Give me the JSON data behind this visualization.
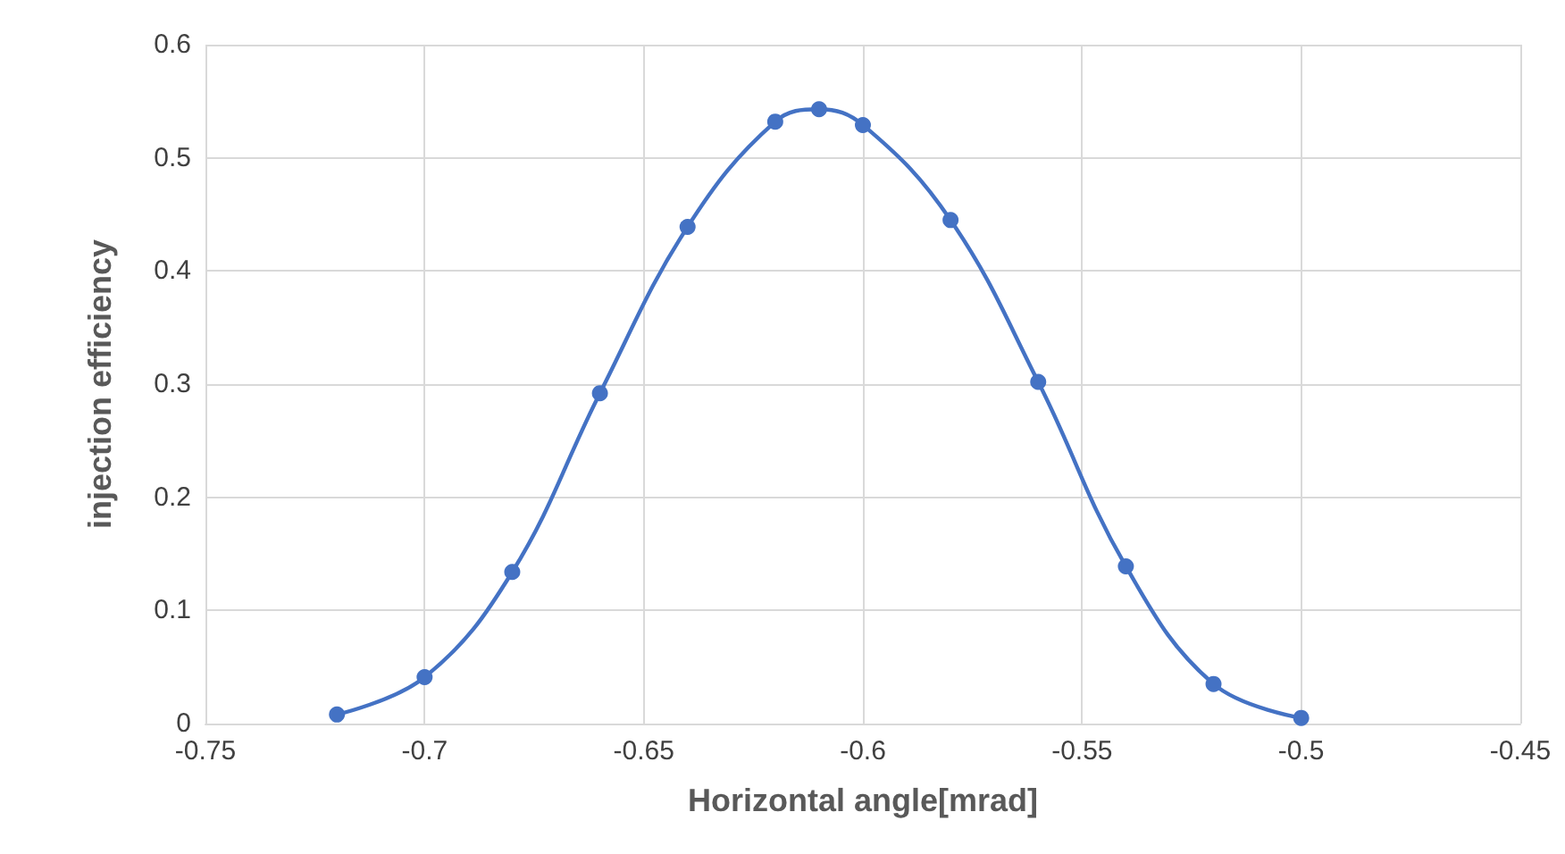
{
  "chart_data": {
    "type": "line",
    "xlabel": "Horizontal angle[mrad]",
    "ylabel": "injection efficiency",
    "x": [
      -0.72,
      -0.7,
      -0.68,
      -0.66,
      -0.64,
      -0.62,
      -0.61,
      -0.6,
      -0.58,
      -0.56,
      -0.54,
      -0.52,
      -0.5
    ],
    "series": [
      {
        "color": "#4472c4",
        "values": [
          0.008,
          0.041,
          0.134,
          0.292,
          0.439,
          0.532,
          0.543,
          0.529,
          0.445,
          0.302,
          0.139,
          0.035,
          0.005
        ]
      }
    ],
    "xlim": [
      -0.75,
      -0.45
    ],
    "xticks": [
      -0.75,
      -0.7,
      -0.65,
      -0.6,
      -0.55,
      -0.5,
      -0.45
    ],
    "ylim": [
      0,
      0.6
    ],
    "yticks": [
      0,
      0.1,
      0.2,
      0.3,
      0.4,
      0.5,
      0.6
    ],
    "grid": true,
    "marker": "circle",
    "line_style": "solid"
  }
}
